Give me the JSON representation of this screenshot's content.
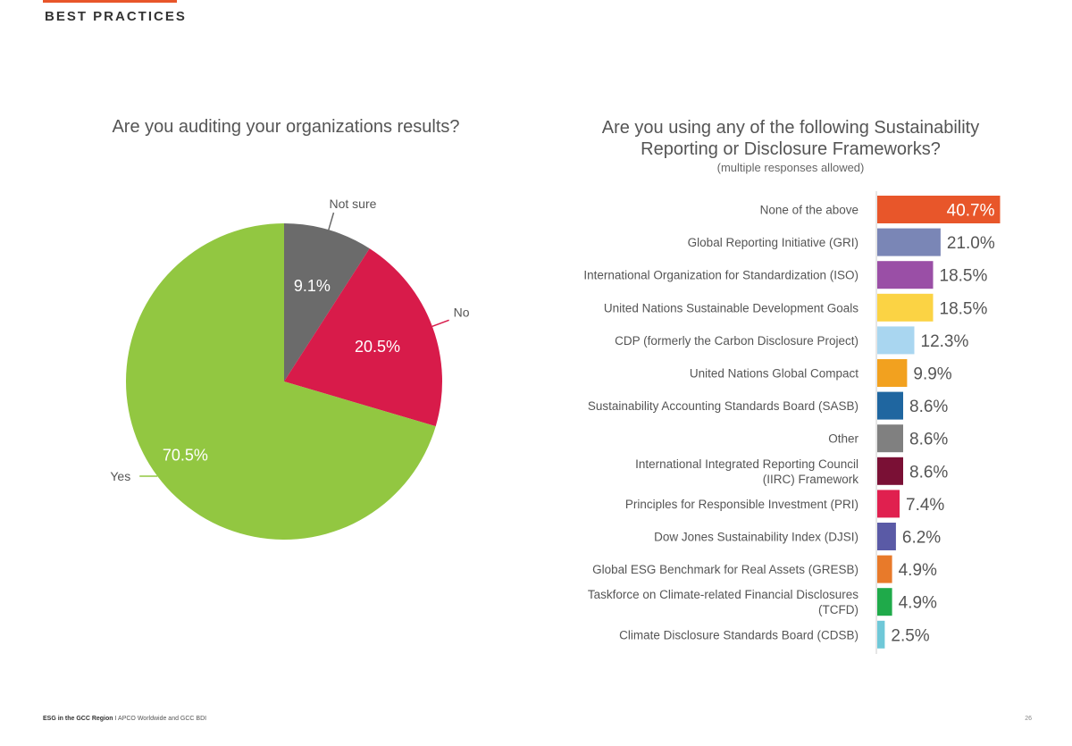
{
  "header": {
    "section_label": "BEST PRACTICES"
  },
  "colors": {
    "accent": "#e8562a"
  },
  "chart_data": [
    {
      "type": "pie",
      "title": "Are you auditing your organizations results?",
      "slices": [
        {
          "label": "Not sure",
          "value": 9.1,
          "value_label": "9.1%",
          "color": "#6b6b6b"
        },
        {
          "label": "No",
          "value": 20.5,
          "value_label": "20.5%",
          "color": "#d81b4a"
        },
        {
          "label": "Yes",
          "value": 70.5,
          "value_label": "70.5%",
          "color": "#92c741"
        }
      ]
    },
    {
      "type": "bar",
      "orientation": "horizontal",
      "title": "Are you using any of the following Sustainability Reporting or Disclosure Frameworks?",
      "subtitle": "(multiple responses allowed)",
      "xlim": [
        0,
        45
      ],
      "bars": [
        {
          "label": [
            "None of the above"
          ],
          "value": 40.7,
          "value_label": "40.7%",
          "color": "#e8562a",
          "label_inside": true
        },
        {
          "label": [
            "Global Reporting Initiative (GRI)"
          ],
          "value": 21.0,
          "value_label": "21.0%",
          "color": "#7a86b6"
        },
        {
          "label": [
            "International Organization for Standardization (ISO)"
          ],
          "value": 18.5,
          "value_label": "18.5%",
          "color": "#9a4fa6"
        },
        {
          "label": [
            "United Nations Sustainable Development Goals"
          ],
          "value": 18.5,
          "value_label": "18.5%",
          "color": "#fbd344"
        },
        {
          "label": [
            "CDP (formerly the Carbon Disclosure Project)"
          ],
          "value": 12.3,
          "value_label": "12.3%",
          "color": "#a9d6f0"
        },
        {
          "label": [
            "United Nations Global Compact"
          ],
          "value": 9.9,
          "value_label": "9.9%",
          "color": "#f2a11f"
        },
        {
          "label": [
            "Sustainability Accounting Standards Board (SASB)"
          ],
          "value": 8.6,
          "value_label": "8.6%",
          "color": "#1f66a0"
        },
        {
          "label": [
            "Other"
          ],
          "value": 8.6,
          "value_label": "8.6%",
          "color": "#808080"
        },
        {
          "label": [
            "International Integrated Reporting Council",
            "(IIRC) Framework"
          ],
          "value": 8.6,
          "value_label": "8.6%",
          "color": "#7a1035"
        },
        {
          "label": [
            "Principles for Responsible Investment (PRI)"
          ],
          "value": 7.4,
          "value_label": "7.4%",
          "color": "#e0204f"
        },
        {
          "label": [
            "Dow Jones Sustainability Index (DJSI)"
          ],
          "value": 6.2,
          "value_label": "6.2%",
          "color": "#5a5aa6"
        },
        {
          "label": [
            "Global ESG Benchmark for Real Assets (GRESB)"
          ],
          "value": 4.9,
          "value_label": "4.9%",
          "color": "#e87a2a"
        },
        {
          "label": [
            "Taskforce on Climate-related Financial Disclosures",
            "(TCFD)"
          ],
          "value": 4.9,
          "value_label": "4.9%",
          "color": "#1faa4a"
        },
        {
          "label": [
            "Climate Disclosure Standards Board (CDSB)"
          ],
          "value": 2.5,
          "value_label": "2.5%",
          "color": "#6fc8d8"
        }
      ]
    }
  ],
  "footer": {
    "report_title": "ESG in the GCC Region",
    "separator": "I",
    "authors": "APCO Worldwide and GCC BDI",
    "page_number": "26"
  }
}
